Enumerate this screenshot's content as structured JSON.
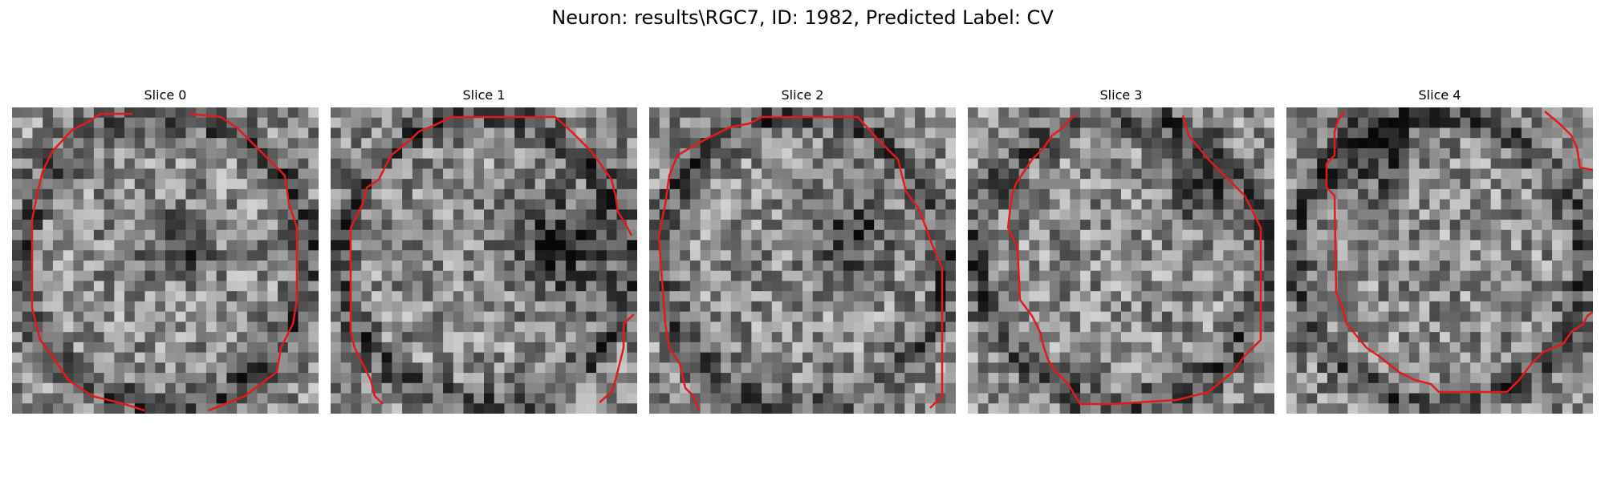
{
  "figure": {
    "title": "Neuron: results\\RGC7, ID: 1982, Predicted Label: CV"
  },
  "panels": [
    {
      "label": "Slice 0",
      "seed": 11,
      "dark_blob": [
        0.55,
        0.45,
        0.1
      ]
    },
    {
      "label": "Slice 1",
      "seed": 23,
      "dark_blob": [
        0.75,
        0.45,
        0.16
      ]
    },
    {
      "label": "Slice 2",
      "seed": 37,
      "dark_blob": [
        0.65,
        0.42,
        0.12
      ]
    },
    {
      "label": "Slice 3",
      "seed": 41,
      "dark_blob": [
        0.75,
        0.25,
        0.1
      ]
    },
    {
      "label": "Slice 4",
      "seed": 53,
      "dark_blob": [
        0.3,
        0.15,
        0.12
      ]
    }
  ],
  "style": {
    "contour_color": "#e31a1c",
    "colormap": "gray"
  }
}
